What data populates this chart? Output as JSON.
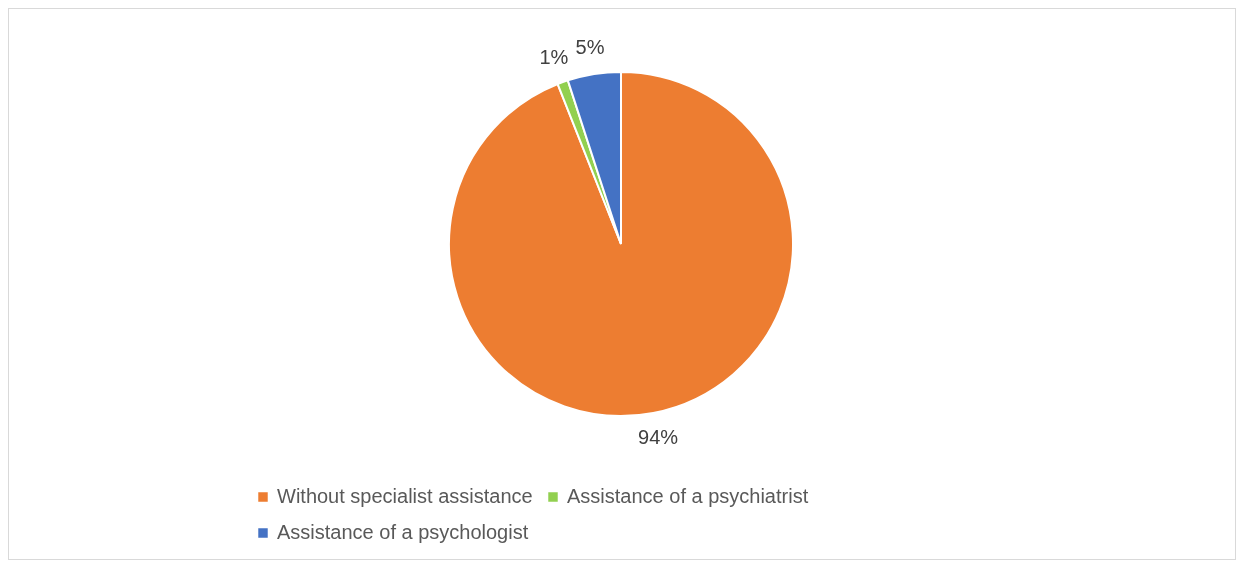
{
  "chart_data": {
    "type": "pie",
    "categories": [
      "Without specialist assistance",
      "Assistance of a psychiatrist",
      "Assistance of a psychologist"
    ],
    "values": [
      94,
      1,
      5
    ],
    "colors": [
      "#ed7d31",
      "#92d050",
      "#4472c4"
    ],
    "value_labels": [
      "94%",
      "1%",
      "5%"
    ],
    "legend": "bottom"
  }
}
